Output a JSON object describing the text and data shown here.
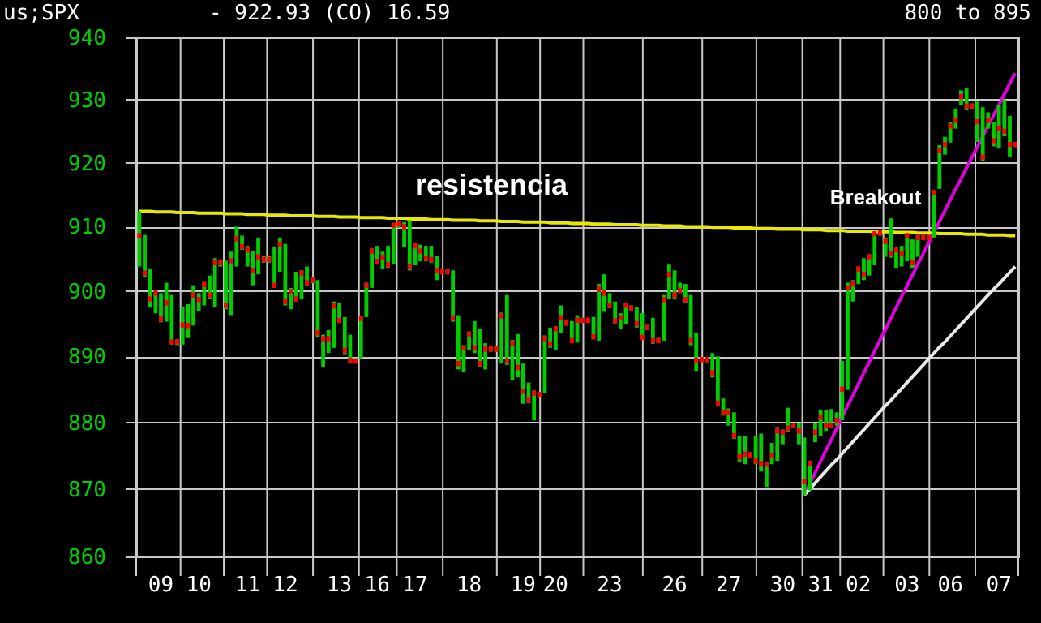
{
  "chart_data": {
    "type": "candlestick",
    "title": "us;SPX",
    "subtitle": "-   922.93   (CO) 16.59",
    "annotations": [
      "800 to 895",
      "resistencia",
      "Breakout"
    ],
    "log": "y",
    "grid": true,
    "ylim": [
      860,
      940
    ],
    "yticks": [
      860,
      870,
      880,
      890,
      900,
      910,
      920,
      930,
      940
    ],
    "categories": [
      null,
      null,
      null,
      null,
      "09",
      null,
      null,
      null,
      null,
      null,
      null,
      "10",
      null,
      null,
      null,
      null,
      null,
      null,
      null,
      null,
      "11",
      null,
      null,
      null,
      null,
      null,
      null,
      "12",
      null,
      null,
      null,
      null,
      null,
      null,
      null,
      null,
      null,
      "13",
      null,
      null,
      null,
      null,
      null,
      null,
      "16",
      null,
      null,
      null,
      null,
      null,
      null,
      "17",
      null,
      null,
      null,
      null,
      null,
      null,
      null,
      null,
      null,
      "18",
      null,
      null,
      null,
      null,
      null,
      null,
      null,
      null,
      null,
      "19",
      null,
      null,
      null,
      null,
      null,
      "20",
      null,
      null,
      null,
      null,
      null,
      null,
      null,
      null,
      null,
      "23",
      null,
      null,
      null,
      null,
      null,
      null,
      null,
      null,
      null,
      null,
      null,
      "26",
      null,
      null,
      null,
      null,
      null,
      null,
      null,
      null,
      null,
      "27",
      null,
      null,
      null,
      null,
      null,
      null,
      null,
      null,
      null,
      "30",
      null,
      null,
      null,
      null,
      null,
      null,
      "31",
      null,
      null,
      null,
      null,
      null,
      null,
      "02",
      null,
      null,
      null,
      null,
      null,
      null,
      null,
      null,
      "03",
      null,
      null,
      null,
      null,
      null,
      null,
      null,
      "06",
      null,
      null,
      null,
      null,
      null,
      null,
      null,
      null,
      "07",
      null,
      null,
      null
    ],
    "series": [
      {
        "color": "#ff0000",
        "ohlc": [
          [
            909.0,
            912.4,
            903.8,
            908.2
          ],
          [
            903.2,
            908.7,
            902.2,
            902.4
          ],
          [
            899.2,
            903.4,
            897.6,
            898.4
          ],
          [
            900.1,
            900.1,
            896.6,
            899.3
          ],
          [
            896.1,
            899.7,
            895.2,
            895.3
          ],
          [
            898.6,
            901.3,
            895.3,
            897.8
          ],
          [
            892.6,
            899.4,
            891.8,
            891.8
          ],
          [
            892.6,
            892.6,
            891.7,
            891.8
          ],
          [
            895.2,
            897.6,
            891.8,
            894.4
          ],
          [
            895.1,
            898.0,
            892.8,
            894.3
          ],
          [
            899.8,
            900.9,
            894.7,
            899.0
          ],
          [
            899.1,
            899.7,
            896.9,
            898.3
          ],
          [
            901.4,
            901.4,
            897.8,
            900.6
          ],
          [
            899.8,
            902.4,
            898.8,
            899.0
          ],
          [
            904.8,
            905.1,
            897.6,
            904.0
          ],
          [
            904.8,
            904.9,
            903.8,
            904.0
          ],
          [
            898.2,
            904.7,
            897.2,
            897.4
          ],
          [
            905.1,
            906.1,
            896.3,
            904.3
          ],
          [
            908.5,
            910.0,
            903.8,
            907.7
          ],
          [
            907.3,
            908.6,
            906.4,
            906.5
          ],
          [
            906.8,
            907.0,
            903.8,
            906.0
          ],
          [
            903.6,
            906.2,
            900.9,
            902.8
          ],
          [
            905.7,
            908.3,
            902.6,
            904.9
          ],
          [
            905.3,
            905.4,
            904.4,
            904.5
          ],
          [
            905.3,
            905.4,
            904.4,
            904.5
          ],
          [
            901.3,
            906.8,
            900.5,
            900.5
          ],
          [
            907.7,
            908.3,
            903.0,
            906.9
          ],
          [
            898.8,
            907.3,
            897.8,
            898.0
          ],
          [
            900.3,
            900.5,
            897.2,
            899.5
          ],
          [
            899.2,
            903.0,
            898.4,
            898.4
          ],
          [
            903.2,
            903.2,
            898.7,
            902.4
          ],
          [
            901.7,
            903.8,
            900.9,
            900.9
          ],
          [
            902.1,
            902.2,
            901.2,
            901.3
          ],
          [
            894.0,
            901.7,
            893.0,
            893.2
          ],
          [
            893.1,
            893.3,
            888.4,
            892.3
          ],
          [
            893.1,
            894.0,
            890.5,
            892.3
          ],
          [
            898.1,
            898.4,
            891.3,
            897.3
          ],
          [
            895.9,
            898.2,
            895.1,
            895.1
          ],
          [
            891.3,
            896.0,
            890.2,
            890.5
          ],
          [
            889.8,
            893.3,
            889.0,
            889.0
          ],
          [
            889.7,
            889.7,
            888.9,
            888.9
          ],
          [
            896.2,
            896.2,
            889.7,
            895.4
          ],
          [
            901.3,
            901.3,
            896.0,
            900.5
          ],
          [
            906.6,
            906.6,
            900.5,
            905.8
          ],
          [
            905.0,
            907.0,
            904.2,
            904.2
          ],
          [
            905.6,
            906.1,
            903.4,
            904.8
          ],
          [
            904.5,
            907.0,
            903.6,
            903.7
          ],
          [
            910.6,
            910.6,
            904.1,
            909.8
          ],
          [
            910.8,
            910.8,
            909.8,
            910.0
          ],
          [
            910.4,
            910.7,
            906.8,
            909.6
          ],
          [
            904.2,
            911.0,
            903.2,
            903.4
          ],
          [
            907.4,
            907.5,
            904.0,
            906.6
          ],
          [
            906.6,
            907.2,
            904.6,
            905.8
          ],
          [
            905.5,
            907.0,
            904.6,
            904.7
          ],
          [
            905.3,
            907.0,
            904.4,
            904.5
          ],
          [
            903.6,
            905.5,
            901.7,
            902.8
          ],
          [
            903.4,
            903.5,
            902.6,
            902.6
          ],
          [
            903.4,
            903.5,
            902.6,
            902.6
          ],
          [
            896.3,
            903.2,
            895.3,
            895.5
          ],
          [
            889.3,
            896.3,
            888.0,
            888.5
          ],
          [
            891.7,
            891.7,
            887.6,
            890.9
          ],
          [
            893.8,
            893.8,
            890.9,
            893.0
          ],
          [
            891.7,
            895.4,
            890.5,
            890.9
          ],
          [
            889.3,
            894.2,
            888.4,
            888.5
          ],
          [
            891.5,
            892.0,
            888.0,
            890.7
          ],
          [
            891.5,
            891.5,
            890.7,
            890.7
          ],
          [
            891.5,
            891.5,
            890.7,
            890.7
          ],
          [
            896.6,
            896.7,
            888.9,
            895.8
          ],
          [
            889.7,
            899.4,
            888.7,
            888.9
          ],
          [
            892.4,
            892.5,
            886.4,
            891.6
          ],
          [
            888.7,
            893.4,
            886.8,
            887.9
          ],
          [
            885.1,
            888.9,
            882.8,
            884.3
          ],
          [
            883.8,
            886.0,
            882.9,
            883.0
          ],
          [
            884.8,
            884.8,
            880.3,
            884.0
          ],
          [
            884.6,
            884.6,
            883.8,
            883.8
          ],
          [
            893.1,
            893.2,
            884.4,
            892.3
          ],
          [
            892.3,
            894.4,
            891.3,
            891.5
          ],
          [
            894.6,
            894.6,
            890.9,
            893.8
          ],
          [
            896.3,
            897.8,
            893.6,
            895.5
          ],
          [
            895.5,
            895.5,
            894.7,
            894.7
          ],
          [
            892.8,
            895.4,
            892.0,
            892.0
          ],
          [
            895.9,
            896.3,
            892.1,
            895.1
          ],
          [
            895.9,
            895.9,
            895.1,
            895.1
          ],
          [
            895.9,
            895.9,
            895.1,
            895.1
          ],
          [
            893.4,
            896.0,
            892.6,
            892.6
          ],
          [
            900.7,
            901.1,
            892.4,
            899.9
          ],
          [
            900.1,
            902.6,
            896.8,
            899.3
          ],
          [
            898.2,
            899.7,
            897.4,
            897.4
          ],
          [
            895.8,
            898.4,
            895.0,
            895.0
          ],
          [
            896.3,
            896.6,
            894.2,
            895.5
          ],
          [
            898.2,
            898.2,
            894.9,
            897.4
          ],
          [
            897.8,
            897.8,
            897.0,
            897.0
          ],
          [
            895.4,
            897.5,
            894.4,
            894.6
          ],
          [
            893.3,
            896.6,
            892.5,
            892.5
          ],
          [
            894.8,
            894.8,
            894.0,
            894.0
          ],
          [
            892.8,
            895.9,
            891.9,
            892.0
          ],
          [
            892.8,
            892.8,
            892.0,
            892.0
          ],
          [
            899.1,
            899.4,
            892.4,
            898.3
          ],
          [
            903.0,
            904.1,
            898.8,
            902.2
          ],
          [
            899.8,
            903.2,
            898.8,
            899.0
          ],
          [
            900.5,
            901.3,
            899.7,
            899.7
          ],
          [
            899.1,
            901.1,
            898.2,
            898.3
          ],
          [
            892.8,
            899.4,
            891.7,
            892.0
          ],
          [
            889.8,
            893.6,
            887.8,
            889.0
          ],
          [
            889.9,
            889.9,
            889.1,
            889.1
          ],
          [
            889.9,
            889.9,
            889.1,
            889.1
          ],
          [
            887.9,
            890.5,
            886.8,
            887.1
          ],
          [
            883.3,
            890.0,
            882.4,
            882.5
          ],
          [
            881.9,
            883.6,
            881.0,
            881.1
          ],
          [
            881.9,
            882.1,
            879.5,
            881.1
          ],
          [
            878.4,
            881.5,
            877.5,
            877.6
          ],
          [
            875.2,
            878.0,
            874.1,
            874.4
          ],
          [
            875.6,
            878.0,
            873.7,
            874.8
          ],
          [
            875.5,
            875.5,
            874.7,
            874.7
          ],
          [
            874.6,
            878.0,
            873.7,
            873.8
          ],
          [
            874.2,
            878.3,
            872.6,
            873.4
          ],
          [
            874.1,
            874.1,
            870.3,
            873.3
          ],
          [
            875.4,
            876.9,
            873.7,
            874.6
          ],
          [
            879.1,
            879.3,
            874.2,
            878.3
          ],
          [
            878.9,
            878.9,
            876.7,
            878.1
          ],
          [
            879.5,
            882.2,
            878.5,
            878.7
          ],
          [
            879.9,
            879.9,
            879.1,
            879.1
          ],
          [
            879.1,
            879.9,
            876.7,
            878.3
          ],
          [
            871.5,
            877.7,
            869.1,
            870.7
          ],
          [
            874.2,
            874.2,
            869.8,
            873.4
          ],
          [
            878.9,
            879.9,
            877.0,
            878.1
          ],
          [
            881.2,
            881.8,
            877.9,
            880.4
          ],
          [
            879.9,
            881.8,
            878.7,
            879.1
          ],
          [
            879.9,
            882.0,
            879.1,
            879.1
          ],
          [
            880.7,
            881.5,
            879.5,
            879.9
          ],
          [
            885.4,
            889.3,
            880.3,
            884.6
          ],
          [
            900.9,
            901.3,
            884.9,
            900.1
          ],
          [
            901.5,
            901.7,
            898.4,
            900.7
          ],
          [
            903.8,
            903.8,
            901.1,
            903.0
          ],
          [
            903.0,
            905.1,
            901.7,
            902.2
          ],
          [
            905.7,
            905.7,
            902.4,
            904.9
          ],
          [
            909.3,
            909.3,
            904.0,
            908.5
          ],
          [
            909.4,
            909.4,
            908.6,
            908.6
          ],
          [
            908.1,
            908.3,
            905.3,
            907.3
          ],
          [
            906.2,
            911.3,
            905.2,
            905.4
          ],
          [
            906.8,
            906.8,
            903.6,
            906.0
          ],
          [
            906.2,
            907.0,
            903.8,
            905.4
          ],
          [
            909.0,
            909.0,
            904.6,
            908.2
          ],
          [
            904.8,
            908.0,
            903.6,
            904.0
          ],
          [
            908.7,
            908.7,
            905.3,
            907.9
          ],
          [
            908.7,
            908.7,
            907.9,
            907.9
          ],
          [
            908.7,
            908.7,
            907.9,
            907.9
          ],
          [
            915.7,
            915.7,
            908.3,
            914.9
          ],
          [
            922.3,
            922.8,
            915.9,
            921.5
          ],
          [
            923.3,
            924.1,
            921.3,
            922.5
          ],
          [
            926.2,
            926.4,
            923.2,
            925.4
          ],
          [
            927.1,
            928.6,
            925.4,
            926.3
          ],
          [
            930.9,
            931.5,
            929.2,
            930.1
          ],
          [
            929.4,
            931.8,
            928.4,
            928.6
          ],
          [
            929.4,
            929.4,
            928.6,
            928.6
          ],
          [
            926.9,
            929.7,
            923.3,
            926.1
          ],
          [
            921.3,
            928.8,
            920.3,
            920.5
          ],
          [
            927.1,
            928.0,
            925.4,
            926.3
          ],
          [
            923.9,
            926.4,
            922.6,
            923.1
          ],
          [
            925.9,
            929.2,
            922.4,
            925.1
          ],
          [
            925.4,
            930.0,
            924.2,
            924.6
          ],
          [
            923.3,
            927.4,
            921.0,
            922.5
          ],
          [
            923.3,
            923.3,
            922.5,
            922.5
          ]
        ]
      },
      {
        "type": "line",
        "color": "#e8e800",
        "values": [
          912.4,
          912.4,
          912.4,
          912.3,
          912.3,
          912.3,
          912.3,
          912.2,
          912.2,
          912.2,
          912.2,
          912.1,
          912.1,
          912.1,
          912.1,
          912.1,
          912.0,
          912.0,
          912.0,
          912.0,
          911.9,
          911.9,
          911.9,
          911.9,
          911.8,
          911.8,
          911.8,
          911.8,
          911.7,
          911.7,
          911.7,
          911.7,
          911.7,
          911.6,
          911.6,
          911.6,
          911.6,
          911.5,
          911.5,
          911.5,
          911.5,
          911.4,
          911.4,
          911.4,
          911.4,
          911.4,
          911.3,
          911.3,
          911.3,
          911.3,
          911.2,
          911.2,
          911.2,
          911.2,
          911.1,
          911.1,
          911.1,
          911.1,
          911.0,
          911.0,
          911.0,
          911.0,
          911.0,
          910.9,
          910.9,
          910.9,
          910.9,
          910.8,
          910.8,
          910.8,
          910.8,
          910.7,
          910.7,
          910.7,
          910.7,
          910.7,
          910.6,
          910.6,
          910.6,
          910.6,
          910.5,
          910.5,
          910.5,
          910.5,
          910.4,
          910.4,
          910.4,
          910.4,
          910.3,
          910.3,
          910.3,
          910.3,
          910.3,
          910.2,
          910.2,
          910.2,
          910.2,
          910.1,
          910.1,
          910.1,
          910.1,
          910.0,
          910.0,
          910.0,
          910.0,
          910.0,
          909.9,
          909.9,
          909.9,
          909.9,
          909.8,
          909.8,
          909.8,
          909.8,
          909.7,
          909.7,
          909.7,
          909.7,
          909.6,
          909.6,
          909.6,
          909.6,
          909.6,
          909.5,
          909.5,
          909.5,
          909.5,
          909.4,
          909.4,
          909.4,
          909.4,
          909.3,
          909.3,
          909.3,
          909.3,
          909.3,
          909.2,
          909.2,
          909.2,
          909.2,
          909.1,
          909.1,
          909.1,
          909.1,
          909.0,
          909.0,
          909.0,
          909.0,
          908.9,
          908.9,
          908.9,
          908.9,
          908.9,
          908.8,
          908.8,
          908.8,
          908.8,
          908.7,
          908.7,
          908.7,
          908.7,
          908.6,
          908.6
        ]
      },
      {
        "type": "line",
        "color": "#e000e0",
        "values": [
          null,
          null,
          null,
          null,
          null,
          null,
          null,
          null,
          null,
          null,
          null,
          null,
          null,
          null,
          null,
          null,
          null,
          null,
          null,
          null,
          null,
          null,
          null,
          null,
          null,
          null,
          null,
          null,
          null,
          null,
          null,
          null,
          null,
          null,
          null,
          null,
          null,
          null,
          null,
          null,
          null,
          null,
          null,
          null,
          null,
          null,
          null,
          null,
          null,
          null,
          null,
          null,
          null,
          null,
          null,
          null,
          null,
          null,
          null,
          null,
          null,
          null,
          null,
          null,
          null,
          null,
          null,
          null,
          null,
          null,
          null,
          null,
          null,
          null,
          null,
          null,
          null,
          null,
          null,
          null,
          null,
          null,
          null,
          null,
          null,
          null,
          null,
          null,
          null,
          null,
          null,
          null,
          null,
          null,
          null,
          null,
          null,
          null,
          null,
          null,
          null,
          null,
          null,
          null,
          null,
          null,
          null,
          null,
          null,
          null,
          null,
          null,
          null,
          null,
          null,
          null,
          null,
          null,
          null,
          null,
          null,
          null,
          null,
          869.1,
          870.8,
          872.4,
          874.1,
          875.8,
          877.4,
          879.1,
          880.8,
          882.5,
          884.1,
          885.8,
          887.5,
          889.1,
          890.8,
          892.5,
          894.1,
          895.8,
          897.5,
          899.2,
          900.8,
          902.5,
          904.2,
          905.8,
          907.5,
          909.2,
          910.8,
          912.5,
          914.2,
          915.9,
          917.5,
          919.2,
          920.9,
          922.5,
          924.2,
          925.9,
          927.5,
          929.2,
          930.9,
          932.6,
          934.2
        ]
      },
      {
        "type": "line",
        "color": "#e8e8e8",
        "values": [
          null,
          null,
          null,
          null,
          null,
          null,
          null,
          null,
          null,
          null,
          null,
          null,
          null,
          null,
          null,
          null,
          null,
          null,
          null,
          null,
          null,
          null,
          null,
          null,
          null,
          null,
          null,
          null,
          null,
          null,
          null,
          null,
          null,
          null,
          null,
          null,
          null,
          null,
          null,
          null,
          null,
          null,
          null,
          null,
          null,
          null,
          null,
          null,
          null,
          null,
          null,
          null,
          null,
          null,
          null,
          null,
          null,
          null,
          null,
          null,
          null,
          null,
          null,
          null,
          null,
          null,
          null,
          null,
          null,
          null,
          null,
          null,
          null,
          null,
          null,
          null,
          null,
          null,
          null,
          null,
          null,
          null,
          null,
          null,
          null,
          null,
          null,
          null,
          null,
          null,
          null,
          null,
          null,
          null,
          null,
          null,
          null,
          null,
          null,
          null,
          null,
          null,
          null,
          null,
          null,
          null,
          null,
          null,
          null,
          null,
          null,
          null,
          null,
          null,
          null,
          null,
          null,
          null,
          null,
          null,
          null,
          null,
          null,
          869.1,
          870.0,
          870.9,
          871.8,
          872.7,
          873.6,
          874.4,
          875.3,
          876.2,
          877.1,
          878.0,
          878.9,
          879.8,
          880.7,
          881.6,
          882.5,
          883.3,
          884.2,
          885.1,
          886.0,
          886.9,
          887.8,
          888.7,
          889.6,
          890.5,
          891.4,
          892.2,
          893.1,
          894.0,
          894.9,
          895.8,
          896.7,
          897.6,
          898.5,
          899.4,
          900.3,
          901.1,
          902.0,
          902.9,
          903.8
        ]
      }
    ]
  }
}
